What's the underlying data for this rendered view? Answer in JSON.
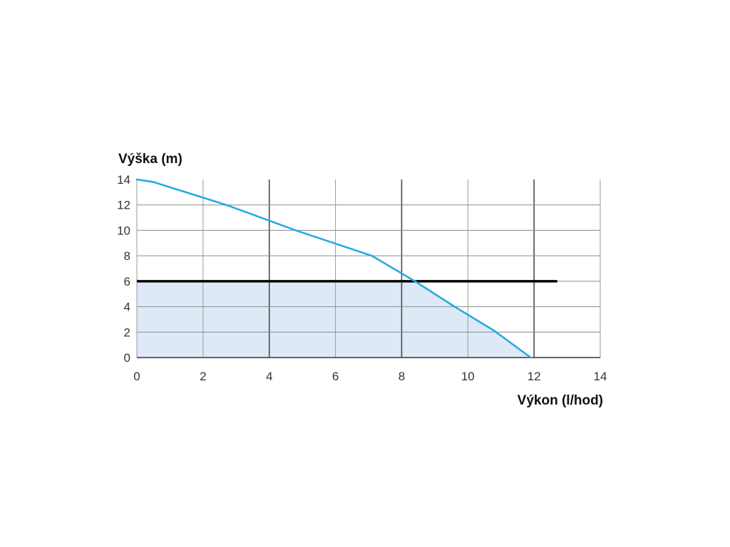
{
  "chart_data": {
    "type": "line",
    "title": "",
    "ylabel": "Výška (m)",
    "xlabel": "Výkon (l/hod)",
    "xlim": [
      0,
      14
    ],
    "ylim": [
      0,
      14
    ],
    "x_ticks": [
      0,
      2,
      4,
      6,
      8,
      10,
      12,
      14
    ],
    "y_ticks": [
      0,
      2,
      4,
      6,
      8,
      10,
      12,
      14
    ],
    "grid": true,
    "series": [
      {
        "color": "#29a9e0",
        "points": [
          [
            0,
            14
          ],
          [
            0.5,
            13.8
          ],
          [
            2.7,
            12
          ],
          [
            4.8,
            10
          ],
          [
            7.1,
            8
          ],
          [
            8.4,
            6
          ],
          [
            9.6,
            4
          ],
          [
            10.8,
            2.1
          ],
          [
            11.9,
            0
          ]
        ]
      }
    ],
    "reference_line": {
      "y": 6,
      "x_range": [
        0,
        12.7
      ],
      "color": "#000000"
    },
    "shaded_region": {
      "y_max": 6,
      "color": "#dde9f6"
    }
  }
}
